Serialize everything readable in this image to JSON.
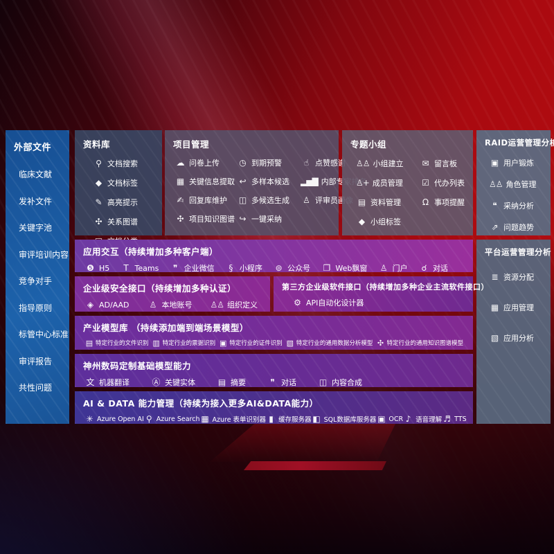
{
  "colors": {
    "background_red": "#a90a10",
    "sidebar_blue": "#1d62ab",
    "box_slate": "#394561",
    "box_gray": "#5d6a80",
    "purple_bright": "#9a2f9c",
    "purple_deep": "#3e3595",
    "text": "#ffffff"
  },
  "sidebar": {
    "title": "外部文件",
    "items": [
      {
        "label": "临床文献"
      },
      {
        "label": "发补文件"
      },
      {
        "label": "关键字池"
      },
      {
        "label": "审评培训内容"
      },
      {
        "label": "竞争对手"
      },
      {
        "label": "指导原则"
      },
      {
        "label": "标管中心标准"
      },
      {
        "label": "审评报告"
      },
      {
        "label": "共性问题"
      }
    ]
  },
  "repository": {
    "title": "资料库",
    "items": [
      {
        "icon": "doc-search-icon",
        "glyph": "⚲",
        "label": "文档搜索"
      },
      {
        "icon": "tag-icon",
        "glyph": "◆",
        "label": "文档标签"
      },
      {
        "icon": "highlight-pen-icon",
        "glyph": "✎",
        "label": "高亮提示"
      },
      {
        "icon": "graph-network-icon",
        "glyph": "✣",
        "label": "关系图谱"
      },
      {
        "icon": "doc-copy-icon",
        "glyph": "▤",
        "label": "文档分类"
      }
    ]
  },
  "project": {
    "title": "项目管理",
    "items": [
      {
        "icon": "cloud-upload-icon",
        "glyph": "☁",
        "label": "问卷上传"
      },
      {
        "icon": "alarm-icon",
        "glyph": "◷",
        "label": "到期预警"
      },
      {
        "icon": "thumbs-up-icon",
        "glyph": "☝",
        "label": "点赞感谢"
      },
      {
        "icon": "doc-extract-icon",
        "glyph": "▦",
        "label": "关键信息提取"
      },
      {
        "icon": "reply-arrow-icon",
        "glyph": "↩",
        "label": "多样本候选"
      },
      {
        "icon": "ranking-bars-icon",
        "glyph": "▂▅▇",
        "label": "内部专家排名"
      },
      {
        "icon": "edit-pen-icon",
        "glyph": "✍",
        "label": "回复库维护"
      },
      {
        "icon": "puzzle-icon",
        "glyph": "◫",
        "label": "多候选生成"
      },
      {
        "icon": "person-icon",
        "glyph": "♙",
        "label": "评审员画像"
      },
      {
        "icon": "graph-network-icon",
        "glyph": "✣",
        "label": "项目知识图谱"
      },
      {
        "icon": "adopt-arrow-icon",
        "glyph": "↪",
        "label": "一键采纳"
      }
    ]
  },
  "group": {
    "title": "专题小组",
    "items": [
      {
        "icon": "people-group-icon",
        "glyph": "♙♙",
        "label": "小组建立"
      },
      {
        "icon": "bbs-board-icon",
        "glyph": "✉",
        "label": "留言板"
      },
      {
        "icon": "person-add-icon",
        "glyph": "♙+",
        "label": "成员管理"
      },
      {
        "icon": "todo-clipboard-icon",
        "glyph": "☑",
        "label": "代办列表"
      },
      {
        "icon": "folder-docs-icon",
        "glyph": "▤",
        "label": "资料管理"
      },
      {
        "icon": "bell-icon",
        "glyph": "Ω",
        "label": "事项提醒"
      },
      {
        "icon": "tag-icon",
        "glyph": "◆",
        "label": "小组标签"
      }
    ]
  },
  "raid": {
    "title": "RAID运营管理分析",
    "items": [
      {
        "icon": "id-card-icon",
        "glyph": "▣",
        "label": "用户锻炼"
      },
      {
        "icon": "people-group-icon",
        "glyph": "♙♙",
        "label": "角色管理"
      },
      {
        "icon": "qa-chat-icon",
        "glyph": "❝",
        "label": "采纳分析"
      },
      {
        "icon": "trend-chart-icon",
        "glyph": "⇗",
        "label": "问题趋势"
      }
    ]
  },
  "platform": {
    "title": "平台运营管理分析",
    "items": [
      {
        "icon": "allocation-list-icon",
        "glyph": "≣",
        "label": "资源分配"
      },
      {
        "icon": "app-grid-icon",
        "glyph": "▦",
        "label": "应用管理"
      },
      {
        "icon": "app-chart-icon",
        "glyph": "▧",
        "label": "应用分析"
      }
    ]
  },
  "interaction": {
    "title": "应用交互（持续增加多种客户端）",
    "items": [
      {
        "icon": "html5-icon",
        "glyph": "❺",
        "label": "H5"
      },
      {
        "icon": "teams-icon",
        "glyph": "T",
        "label": "Teams"
      },
      {
        "icon": "wechat-work-icon",
        "glyph": "❞",
        "label": "企业微信"
      },
      {
        "icon": "miniprogram-icon",
        "glyph": "§",
        "label": "小程序"
      },
      {
        "icon": "official-account-icon",
        "glyph": "⊚",
        "label": "公众号"
      },
      {
        "icon": "web-window-icon",
        "glyph": "❐",
        "label": "Web飘窗"
      },
      {
        "icon": "portal-person-icon",
        "glyph": "♙",
        "label": "门户"
      },
      {
        "icon": "dialog-people-icon",
        "glyph": "☌",
        "label": "对话"
      }
    ]
  },
  "security": {
    "title": "企业级安全接口（持续增加多种认证）",
    "items": [
      {
        "icon": "ad-aad-icon",
        "glyph": "◈",
        "label": "AD/AAD"
      },
      {
        "icon": "local-account-icon",
        "glyph": "♙",
        "label": "本地账号"
      },
      {
        "icon": "org-define-icon",
        "glyph": "♙♙",
        "label": "组织定义"
      }
    ]
  },
  "thirdparty": {
    "title": "第三方企业级软件接口（持续增加多种企业主流软件接口）",
    "items": [
      {
        "icon": "api-gear-icon",
        "glyph": "⚙",
        "label": "API自动化设计器"
      }
    ]
  },
  "industry": {
    "title": "产业模型库 （持续添加端到端场景模型）",
    "items": [
      {
        "icon": "doc-recognize-icon",
        "glyph": "▤",
        "label": "特定行业的文件识别"
      },
      {
        "icon": "receipt-recognize-icon",
        "glyph": "▥",
        "label": "特定行业的票据识别"
      },
      {
        "icon": "idcard-recognize-icon",
        "glyph": "▣",
        "label": "特定行业的证件识别"
      },
      {
        "icon": "data-model-icon",
        "glyph": "▧",
        "label": "特定行业的通用数据分析模型"
      },
      {
        "icon": "knowledge-graph-icon",
        "glyph": "✣",
        "label": "特定行业的通用知识图谱模型"
      }
    ]
  },
  "foundation": {
    "title": "神州数码定制基础模型能力",
    "items": [
      {
        "icon": "translate-icon",
        "glyph": "文",
        "label": "机器翻译"
      },
      {
        "icon": "entity-shield-icon",
        "glyph": "Ⓐ",
        "label": "关键实体"
      },
      {
        "icon": "summary-doc-icon",
        "glyph": "▤",
        "label": "摘要"
      },
      {
        "icon": "chat-bubble-icon",
        "glyph": "❞",
        "label": "对话"
      },
      {
        "icon": "content-compose-icon",
        "glyph": "◫",
        "label": "内容合成"
      }
    ]
  },
  "aidata": {
    "title": "AI & DATA 能力管理（持续为接入更多AI&DATA能力）",
    "items": [
      {
        "icon": "openai-icon",
        "glyph": "✳",
        "label": "Azure Open AI"
      },
      {
        "icon": "search-doc-icon",
        "glyph": "⚲",
        "label": "Azure Search"
      },
      {
        "icon": "form-recognizer-icon",
        "glyph": "▦",
        "label": "Azure 表单识别器"
      },
      {
        "icon": "cache-server-icon",
        "glyph": "▮",
        "label": "缓存服务器"
      },
      {
        "icon": "sql-database-icon",
        "glyph": "◧",
        "label": "SQL数据库服务器"
      },
      {
        "icon": "ocr-icon",
        "glyph": "▣",
        "label": "OCR"
      },
      {
        "icon": "speech-icon",
        "glyph": "♪",
        "label": "语音理解"
      },
      {
        "icon": "tts-icon",
        "glyph": "♬",
        "label": "TTS"
      }
    ]
  }
}
